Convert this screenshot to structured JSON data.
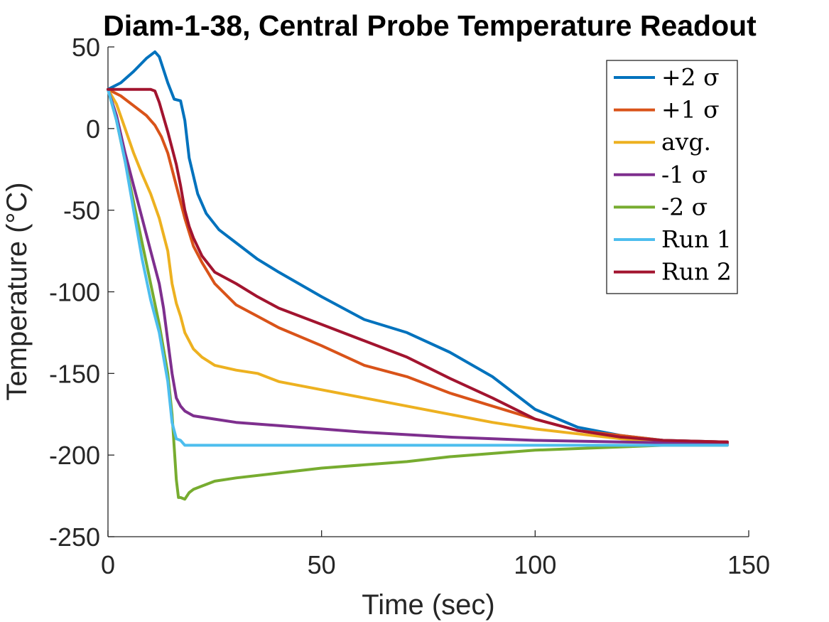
{
  "chart_data": {
    "type": "line",
    "title": "Diam-1-38, Central Probe Temperature Readout",
    "xlabel": "Time (sec)",
    "ylabel": "Temperature (°C)",
    "xlim": [
      0,
      150
    ],
    "ylim": [
      -250,
      50
    ],
    "xticks": [
      0,
      50,
      100,
      150
    ],
    "xtick_labels": [
      "0",
      "50",
      "100",
      "150"
    ],
    "yticks": [
      50,
      0,
      -50,
      -100,
      -150,
      -200,
      -250
    ],
    "ytick_labels": [
      "50",
      "0",
      "-50",
      "-100",
      "-150",
      "-200",
      "-250"
    ],
    "grid": false,
    "legend_position": "top-right",
    "series": [
      {
        "name": "+2 σ",
        "color": "#0072BD",
        "x": [
          0,
          3,
          6,
          9,
          11,
          12,
          14,
          15.5,
          17,
          18,
          19,
          21,
          23,
          26,
          30,
          35,
          40,
          50,
          60,
          70,
          80,
          90,
          100,
          110,
          120,
          130,
          145
        ],
        "y": [
          24,
          28,
          35,
          43,
          47,
          44,
          28,
          18,
          17,
          5,
          -18,
          -40,
          -52,
          -62,
          -70,
          -80,
          -88,
          -103,
          -117,
          -125,
          -137,
          -152,
          -172,
          -183,
          -188,
          -191,
          -192
        ]
      },
      {
        "name": "+1 σ",
        "color": "#D95319",
        "x": [
          0,
          3,
          6,
          9,
          11,
          12.5,
          14,
          16,
          18,
          20,
          22,
          25,
          30,
          35,
          40,
          50,
          60,
          70,
          80,
          90,
          100,
          110,
          120,
          130,
          145
        ],
        "y": [
          24,
          20,
          14,
          8,
          2,
          -5,
          -15,
          -35,
          -55,
          -72,
          -82,
          -95,
          -108,
          -115,
          -122,
          -133,
          -145,
          -152,
          -162,
          -170,
          -178,
          -185,
          -188,
          -191,
          -192
        ]
      },
      {
        "name": "avg.",
        "color": "#EDB120",
        "x": [
          0,
          2,
          4,
          6,
          8,
          10,
          12,
          14,
          15,
          16,
          17,
          18,
          20,
          22,
          25,
          30,
          35,
          40,
          50,
          60,
          70,
          80,
          90,
          100,
          110,
          120,
          130,
          145
        ],
        "y": [
          24,
          15,
          0,
          -15,
          -28,
          -40,
          -55,
          -75,
          -95,
          -107,
          -115,
          -125,
          -135,
          -140,
          -145,
          -148,
          -150,
          -155,
          -160,
          -165,
          -170,
          -175,
          -180,
          -184,
          -187,
          -190,
          -192,
          -193
        ]
      },
      {
        "name": "-1 σ",
        "color": "#7E2F8E",
        "x": [
          0,
          2,
          4,
          6,
          8,
          10,
          12,
          13,
          14,
          15,
          16,
          17,
          18,
          20,
          25,
          30,
          40,
          50,
          60,
          80,
          100,
          120,
          145
        ],
        "y": [
          24,
          8,
          -15,
          -35,
          -55,
          -75,
          -95,
          -110,
          -130,
          -150,
          -165,
          -170,
          -173,
          -176,
          -178,
          -180,
          -182,
          -184,
          -186,
          -189,
          -191,
          -192,
          -193
        ]
      },
      {
        "name": "-2 σ",
        "color": "#77AC30",
        "x": [
          0,
          2,
          4,
          6,
          8,
          10,
          12,
          14,
          15,
          15.5,
          16,
          16.5,
          17,
          18,
          19,
          20,
          22,
          25,
          30,
          40,
          50,
          60,
          70,
          80,
          90,
          100,
          110,
          120,
          130,
          145
        ],
        "y": [
          24,
          5,
          -20,
          -45,
          -70,
          -95,
          -120,
          -150,
          -175,
          -195,
          -215,
          -226,
          -226,
          -227,
          -223,
          -221,
          -219,
          -216,
          -214,
          -211,
          -208,
          -206,
          -204,
          -201,
          -199,
          -197,
          -196,
          -195,
          -194,
          -194
        ]
      },
      {
        "name": "Run 1",
        "color": "#4DBEEE",
        "x": [
          0,
          2,
          4,
          6,
          8,
          10,
          12,
          14,
          15,
          16,
          17,
          18,
          30,
          60,
          90,
          120,
          145
        ],
        "y": [
          24,
          5,
          -20,
          -50,
          -80,
          -105,
          -125,
          -155,
          -180,
          -190,
          -191,
          -194,
          -194,
          -194,
          -194,
          -194,
          -194
        ]
      },
      {
        "name": "Run 2",
        "color": "#A2142F",
        "x": [
          0,
          5,
          10,
          11,
          12,
          13,
          14,
          15,
          16,
          17,
          18,
          19,
          20,
          22,
          25,
          30,
          35,
          40,
          50,
          60,
          70,
          80,
          90,
          100,
          110,
          120,
          130,
          145
        ],
        "y": [
          24,
          24,
          24,
          23,
          16,
          7,
          -2,
          -12,
          -22,
          -35,
          -50,
          -60,
          -67,
          -78,
          -88,
          -95,
          -103,
          -110,
          -120,
          -130,
          -140,
          -153,
          -165,
          -178,
          -185,
          -189,
          -191,
          -192
        ]
      }
    ]
  }
}
